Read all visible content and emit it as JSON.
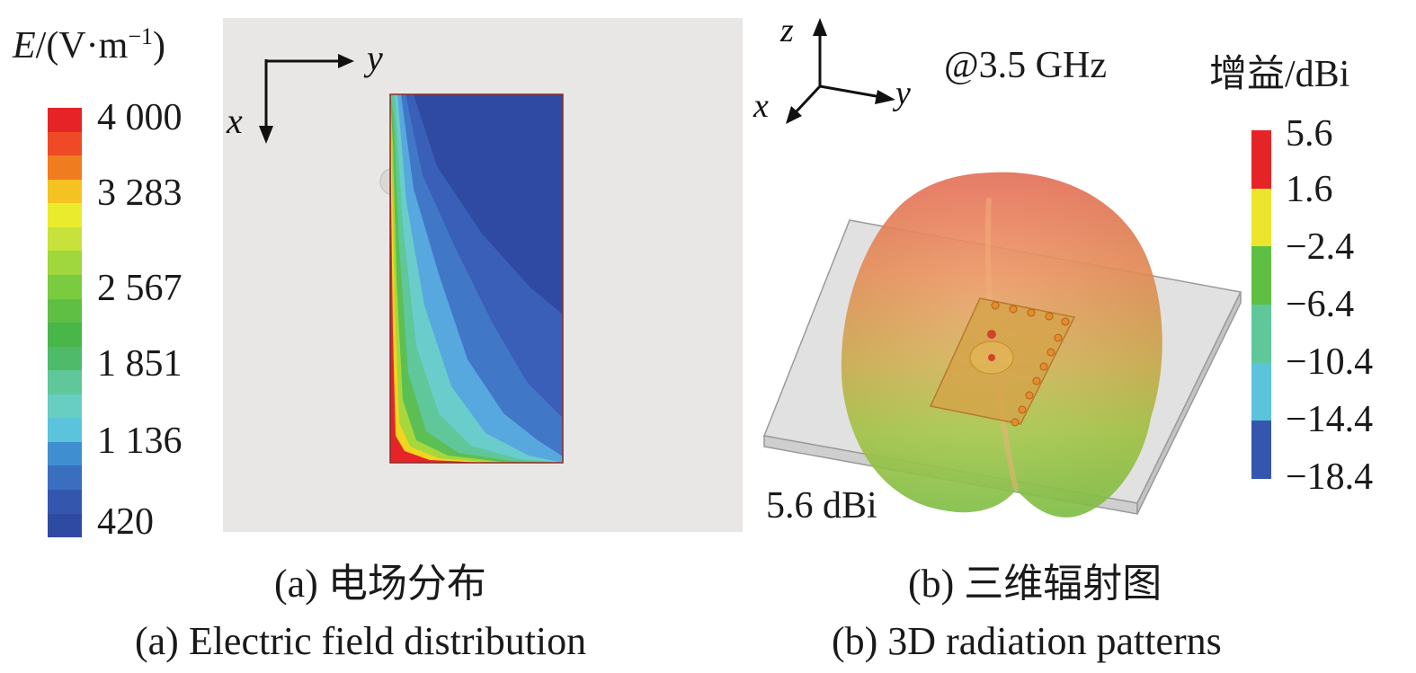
{
  "panel_a": {
    "legend_title_sym": "E",
    "legend_title_unit": "/(V·m",
    "legend_title_sup": "−1",
    "legend_title_close": ")",
    "legend_ticks": [
      "4 000",
      "3 283",
      "2 567",
      "1 851",
      "1 136",
      "420"
    ],
    "legend_colors": [
      "#e62427",
      "#ee4a25",
      "#f07c20",
      "#f4c321",
      "#eaec2b",
      "#c7e23a",
      "#9fd73c",
      "#7acb40",
      "#5fbf43",
      "#48b648",
      "#4fbb6a",
      "#5fc79a",
      "#68cdc2",
      "#5bc4dc",
      "#3f8fd0",
      "#3a6fc0",
      "#3456ad",
      "#2f4aa2"
    ],
    "axis_right": "y",
    "axis_down": "x",
    "caption_cn": "(a) 电场分布",
    "caption_en": "(a) Electric field distribution"
  },
  "panel_b": {
    "freq": "@3.5 GHz",
    "axis_z": "z",
    "axis_y": "y",
    "axis_x": "x",
    "legend_title": "增益/dBi",
    "legend_ticks": [
      "5.6",
      "1.6",
      "−2.4",
      "−6.4",
      "−10.4",
      "−14.4",
      "−18.4"
    ],
    "legend_colors": [
      "#e62427",
      "#ebe62b",
      "#5fbf43",
      "#5fc79a",
      "#5bc4dc",
      "#3456ad"
    ],
    "max_gain": "5.6 dBi",
    "caption_cn": "(b) 三维辐射图",
    "caption_en": "(b) 3D radiation patterns"
  }
}
